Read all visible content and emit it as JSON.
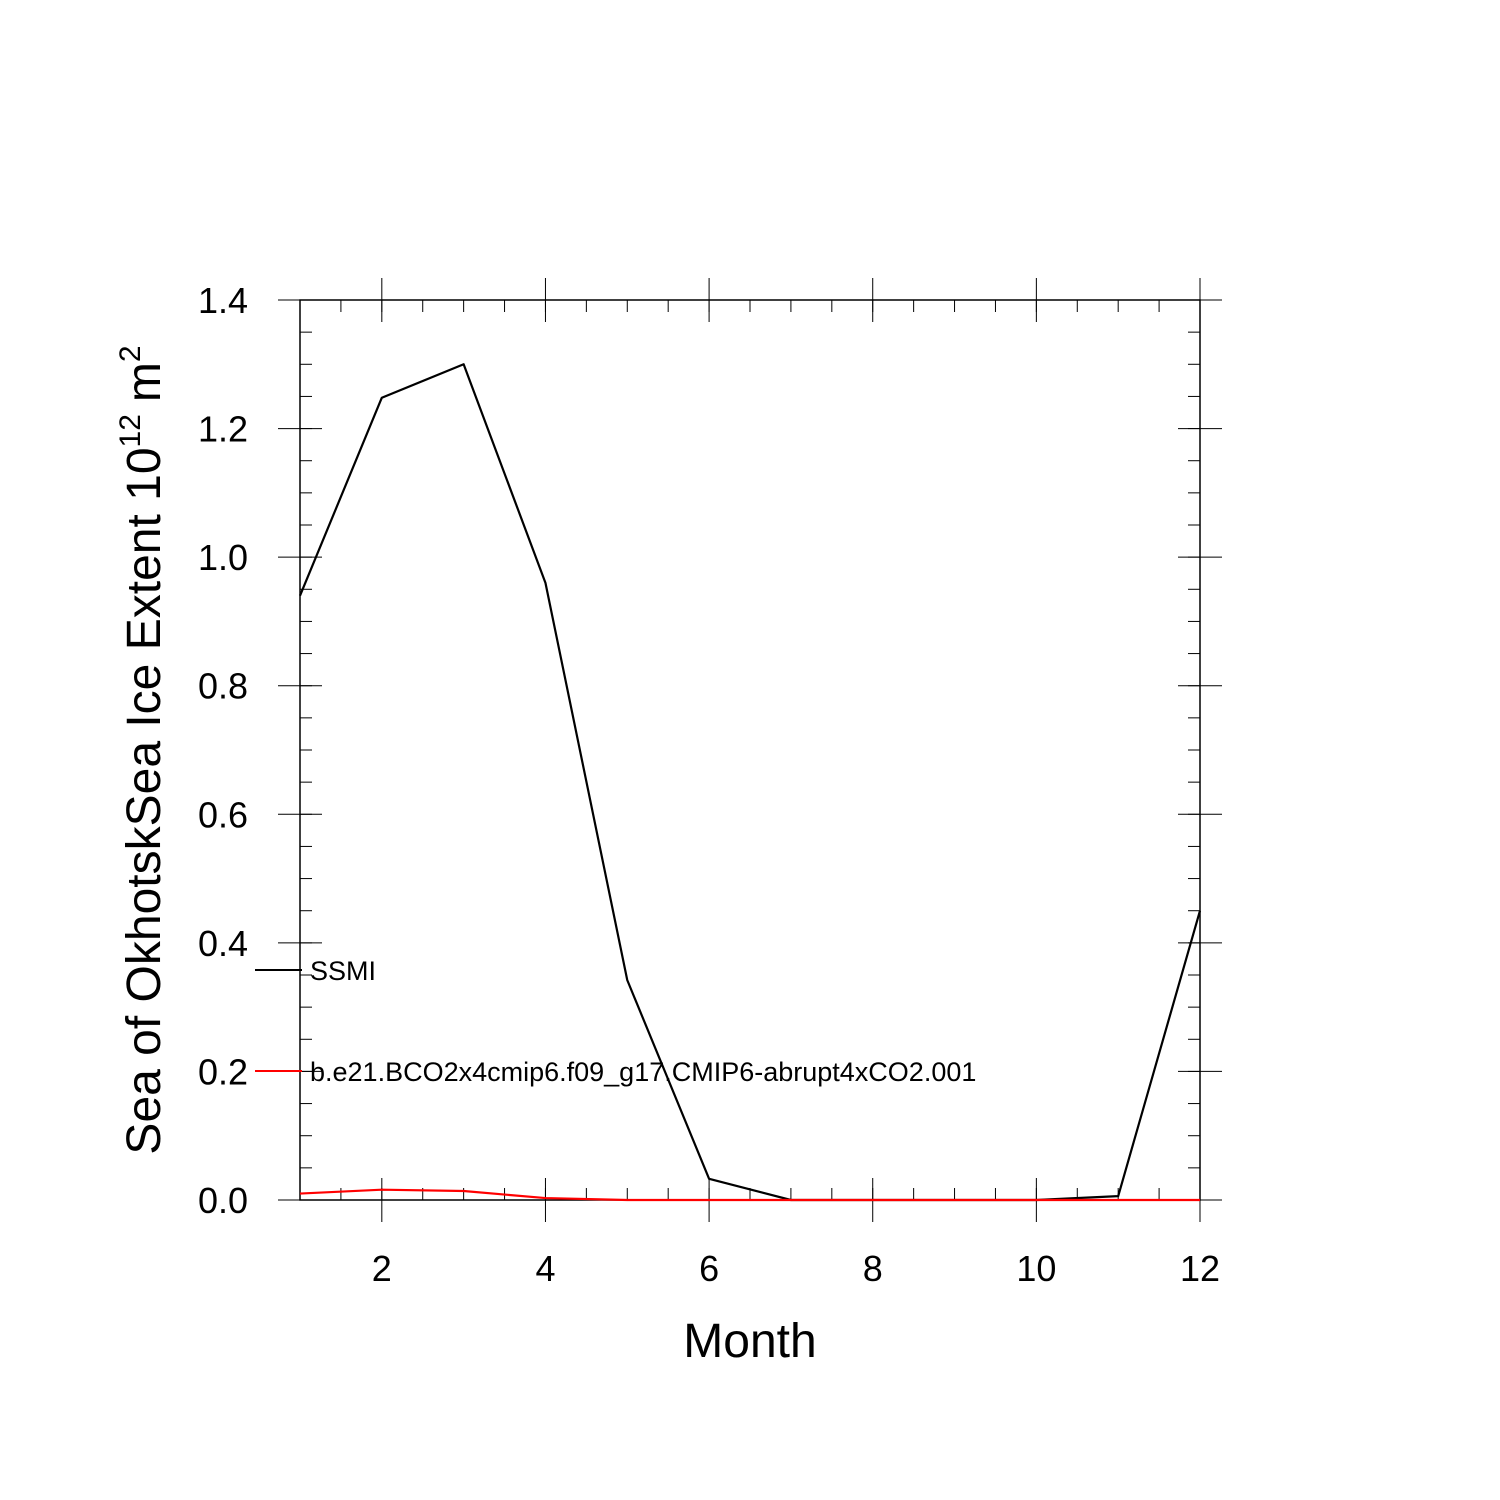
{
  "chart_data": {
    "type": "line",
    "xlabel": "Month",
    "ylabel_text": "Sea of OkhotskSea Ice Extent 10",
    "ylabel_exponent": "12",
    "ylabel_unit": "m",
    "ylabel_unit_exponent": "2",
    "xlim": [
      1,
      12
    ],
    "ylim": [
      0,
      1.4
    ],
    "x_ticks": [
      2,
      4,
      6,
      8,
      10,
      12
    ],
    "x_tick_labels": [
      "2",
      "4",
      "6",
      "8",
      "10",
      "12"
    ],
    "y_ticks": [
      0,
      0.2,
      0.4,
      0.6,
      0.8,
      1.0,
      1.2,
      1.4
    ],
    "y_tick_labels": [
      "0.0",
      "0.2",
      "0.4",
      "0.6",
      "0.8",
      "1.0",
      "1.2",
      "1.4"
    ],
    "x_minor_step": 0.5,
    "y_minor_step": 0.05,
    "grid": false,
    "legend_placement": "left, inside plot",
    "x": [
      1,
      2,
      3,
      4,
      5,
      6,
      7,
      8,
      9,
      10,
      11,
      12
    ],
    "series": [
      {
        "name": "SSMI",
        "color": "#000000",
        "values": [
          0.94,
          1.248,
          1.3,
          0.96,
          0.342,
          0.033,
          0.0,
          0.0,
          0.0,
          0.0,
          0.006,
          0.45
        ]
      },
      {
        "name": "b.e21.BCO2x4cmip6.f09_g17.CMIP6-abrupt4xCO2.001",
        "color": "#ff0000",
        "values": [
          0.01,
          0.016,
          0.014,
          0.003,
          0.0,
          0.0,
          0.0,
          0.0,
          0.0,
          0.0,
          0.0,
          0.0
        ]
      }
    ]
  }
}
